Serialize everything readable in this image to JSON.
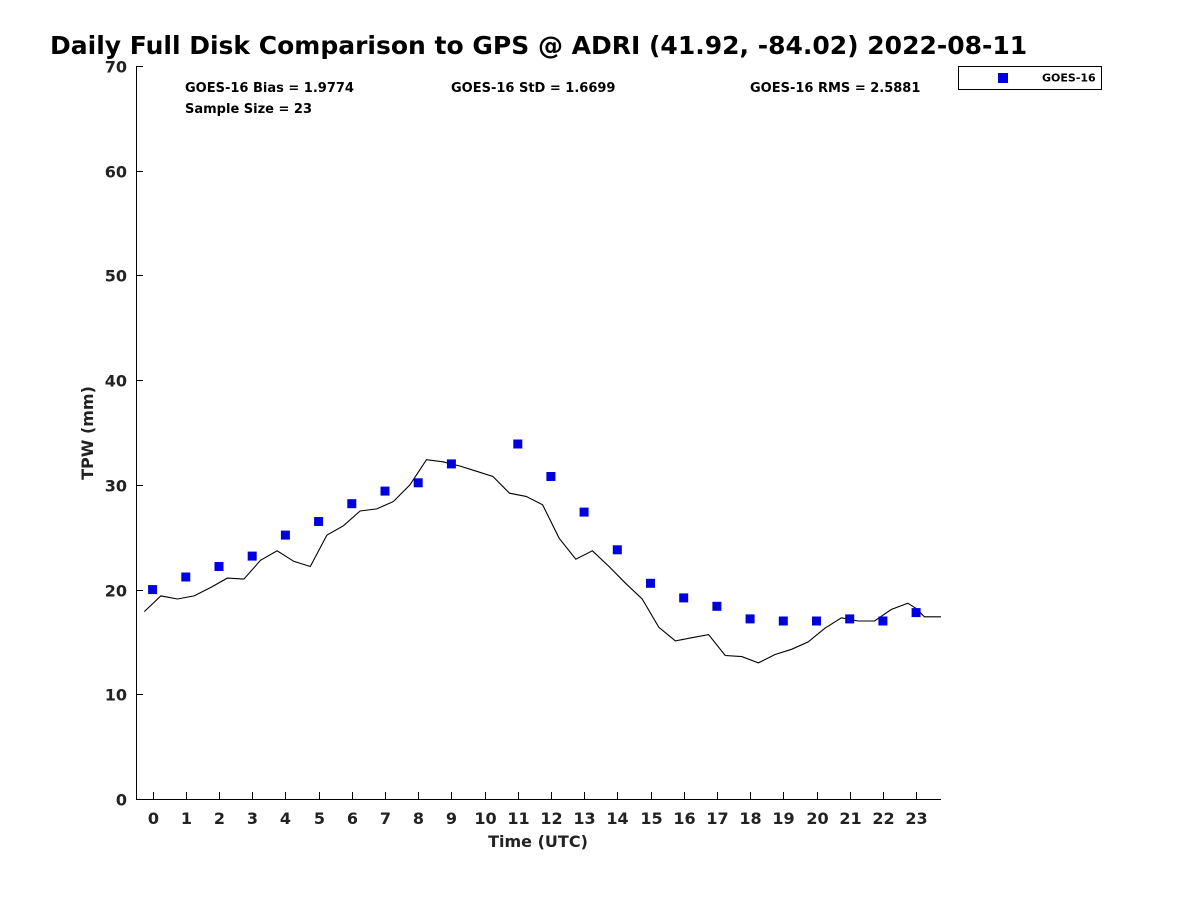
{
  "chart_data": {
    "type": "scatter",
    "title": "Daily Full Disk Comparison to GPS @ ADRI (41.92, -84.02) 2022-08-11",
    "xlabel": "Time (UTC)",
    "ylabel": "TPW (mm)",
    "xlim": [
      -0.5,
      23.75
    ],
    "ylim": [
      0,
      70
    ],
    "xticks": [
      "0",
      "1",
      "2",
      "3",
      "4",
      "5",
      "6",
      "7",
      "8",
      "9",
      "10",
      "11",
      "12",
      "13",
      "14",
      "15",
      "16",
      "17",
      "18",
      "19",
      "20",
      "21",
      "22",
      "23"
    ],
    "yticks": [
      "0",
      "10",
      "20",
      "30",
      "40",
      "50",
      "60",
      "70"
    ],
    "grid": false,
    "legend_position": "top-right outside",
    "stats": {
      "bias": "GOES-16 Bias = 1.9774",
      "std": "GOES-16 StD = 1.6699",
      "rms": "GOES-16 RMS = 2.5881",
      "sample_size": "Sample Size = 23"
    },
    "series": [
      {
        "name": "GOES-16",
        "kind": "scatter",
        "color": "#0000dd",
        "marker": "square",
        "x": [
          0,
          1,
          2,
          3,
          4,
          5,
          6,
          7,
          8,
          9,
          11,
          12,
          13,
          14,
          15,
          16,
          17,
          18,
          19,
          20,
          21,
          22,
          23
        ],
        "y": [
          20.0,
          21.2,
          22.2,
          23.2,
          25.2,
          26.5,
          28.2,
          29.4,
          30.2,
          32.0,
          33.9,
          30.8,
          27.4,
          23.8,
          20.6,
          19.2,
          18.4,
          17.2,
          17.0,
          17.0,
          17.2,
          17.0,
          17.8
        ]
      },
      {
        "kind": "line",
        "color": "#000000",
        "x": [
          -0.25,
          0.25,
          0.75,
          1.25,
          1.75,
          2.25,
          2.75,
          3.25,
          3.75,
          4.25,
          4.75,
          5.25,
          5.75,
          6.25,
          6.75,
          7.25,
          7.75,
          8.25,
          8.75,
          9.25,
          9.75,
          10.25,
          10.75,
          11.25,
          11.75,
          12.25,
          12.75,
          13.25,
          13.75,
          14.25,
          14.75,
          15.25,
          15.75,
          16.25,
          16.75,
          17.25,
          17.75,
          18.25,
          18.75,
          19.25,
          19.75,
          20.25,
          20.75,
          21.25,
          21.75,
          22.25,
          22.75,
          23.0,
          23.25,
          23.75
        ],
        "y": [
          17.9,
          19.4,
          19.1,
          19.4,
          20.2,
          21.1,
          21.0,
          22.8,
          23.7,
          22.7,
          22.2,
          25.2,
          26.1,
          27.5,
          27.7,
          28.4,
          30.0,
          32.4,
          32.2,
          31.8,
          31.3,
          30.8,
          29.2,
          28.9,
          28.1,
          24.9,
          22.9,
          23.7,
          22.2,
          20.6,
          19.1,
          16.4,
          15.1,
          15.4,
          15.7,
          13.7,
          13.6,
          13.0,
          13.8,
          14.3,
          15.0,
          16.3,
          17.3,
          17.0,
          17.0,
          18.1,
          18.7,
          18.2,
          17.4,
          17.4
        ]
      }
    ]
  }
}
